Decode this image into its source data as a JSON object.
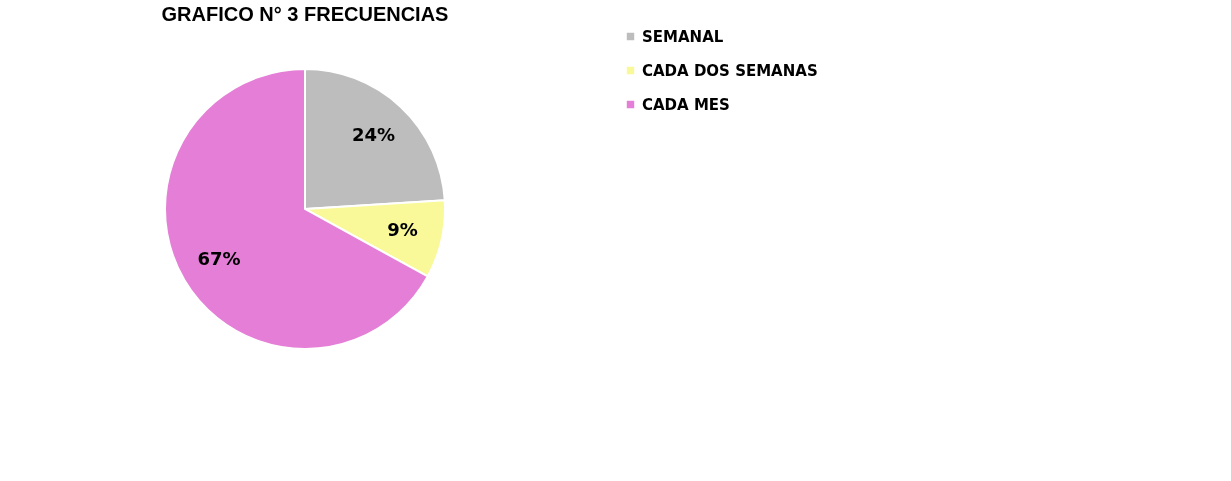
{
  "chart_data": {
    "type": "pie",
    "title": "GRAFICO N° 3 FRECUENCIAS",
    "categories": [
      "SEMANAL",
      "CADA DOS SEMANAS",
      "CADA MES"
    ],
    "values": [
      24,
      9,
      67
    ],
    "colors": [
      "#bdbdbd",
      "#f9f99a",
      "#e47ed6"
    ],
    "value_labels": [
      "24%",
      "9%",
      "67%"
    ],
    "legend": "right"
  }
}
